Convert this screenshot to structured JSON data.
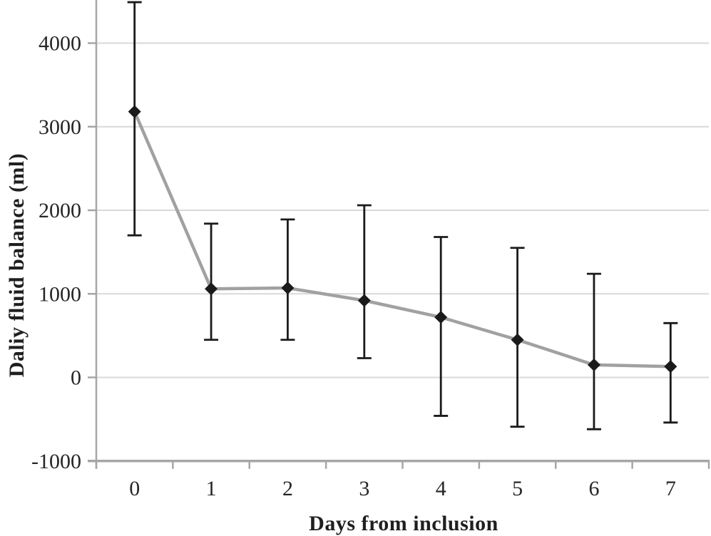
{
  "figure": {
    "background": "#ffffff"
  },
  "chart_data": {
    "type": "line",
    "title": "",
    "xlabel": "Days from inclusion",
    "ylabel": "Daliy fluid balance (ml)",
    "categories": [
      "0",
      "1",
      "2",
      "3",
      "4",
      "5",
      "6",
      "7"
    ],
    "series": [
      {
        "values": [
          3180,
          1060,
          1070,
          920,
          720,
          450,
          150,
          130
        ],
        "error_upper": [
          4490,
          1840,
          1890,
          2060,
          1680,
          1550,
          1240,
          650
        ],
        "error_lower": [
          1700,
          450,
          450,
          230,
          -460,
          -590,
          -620,
          -540
        ],
        "marker": "diamond"
      }
    ],
    "ylim": [
      -1000,
      4515
    ],
    "yticks": [
      -1000,
      0,
      1000,
      2000,
      3000,
      4000
    ],
    "grid": true,
    "legend_position": "none",
    "colors": {
      "line": "#a1a1a1",
      "marker": "#1a1a1a",
      "error_bar": "#1a1a1a",
      "gridline": "#d9d9d9",
      "axis": "#a6a6a6",
      "tick_label": "#262626"
    }
  }
}
